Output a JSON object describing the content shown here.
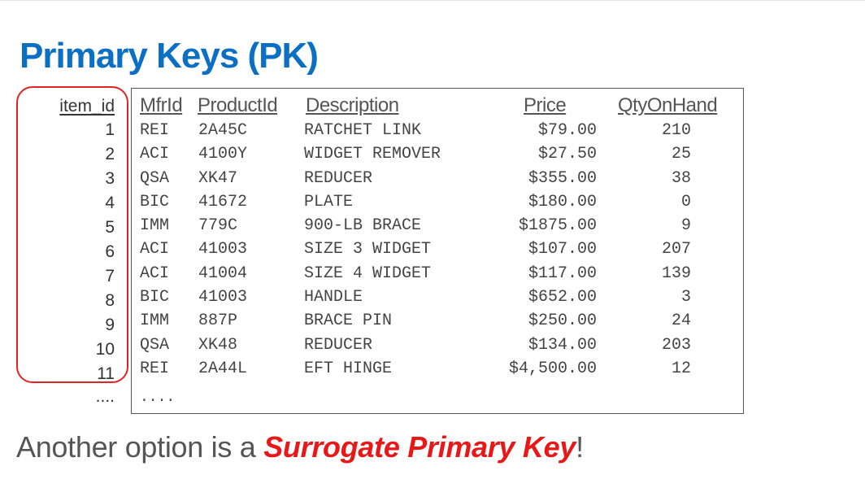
{
  "title": "Primary Keys (PK)",
  "id_column": {
    "header": "item_id",
    "values": [
      "1",
      "2",
      "3",
      "4",
      "5",
      "6",
      "7",
      "8",
      "9",
      "10",
      "11"
    ],
    "ellipsis": "...."
  },
  "table": {
    "headers": {
      "mfr_id": "MfrId",
      "product_id": "ProductId",
      "description": "Description",
      "price": "Price",
      "qty_on_hand": "QtyOnHand"
    },
    "rows": [
      {
        "mfr_id": "REI",
        "product_id": "2A45C",
        "description": "RATCHET LINK",
        "price": "$79.00",
        "qty_on_hand": "210"
      },
      {
        "mfr_id": "ACI",
        "product_id": "4100Y",
        "description": "WIDGET REMOVER",
        "price": "$27.50",
        "qty_on_hand": "25"
      },
      {
        "mfr_id": "QSA",
        "product_id": "XK47",
        "description": "REDUCER",
        "price": "$355.00",
        "qty_on_hand": "38"
      },
      {
        "mfr_id": "BIC",
        "product_id": "41672",
        "description": "PLATE",
        "price": "$180.00",
        "qty_on_hand": "0"
      },
      {
        "mfr_id": "IMM",
        "product_id": "779C",
        "description": "900-LB BRACE",
        "price": "$1875.00",
        "qty_on_hand": "9"
      },
      {
        "mfr_id": "ACI",
        "product_id": "41003",
        "description": "SIZE 3 WIDGET",
        "price": "$107.00",
        "qty_on_hand": "207"
      },
      {
        "mfr_id": "ACI",
        "product_id": "41004",
        "description": "SIZE 4 WIDGET",
        "price": "$117.00",
        "qty_on_hand": "139"
      },
      {
        "mfr_id": "BIC",
        "product_id": "41003",
        "description": "HANDLE",
        "price": "$652.00",
        "qty_on_hand": "3"
      },
      {
        "mfr_id": "IMM",
        "product_id": "887P",
        "description": "BRACE PIN",
        "price": "$250.00",
        "qty_on_hand": "24"
      },
      {
        "mfr_id": "QSA",
        "product_id": "XK48",
        "description": "REDUCER",
        "price": "$134.00",
        "qty_on_hand": "203"
      },
      {
        "mfr_id": "REI",
        "product_id": "2A44L",
        "description": "EFT HINGE",
        "price": "$4,500.00",
        "qty_on_hand": "12"
      }
    ],
    "ellipsis": "...."
  },
  "footer": {
    "before": "Another option is a ",
    "emphasis": "Surrogate Primary Key",
    "after": "!"
  },
  "colors": {
    "title": "#0b6fc4",
    "highlight_border": "#e02424",
    "emphasis": "#e81818",
    "body_text": "#555555"
  }
}
